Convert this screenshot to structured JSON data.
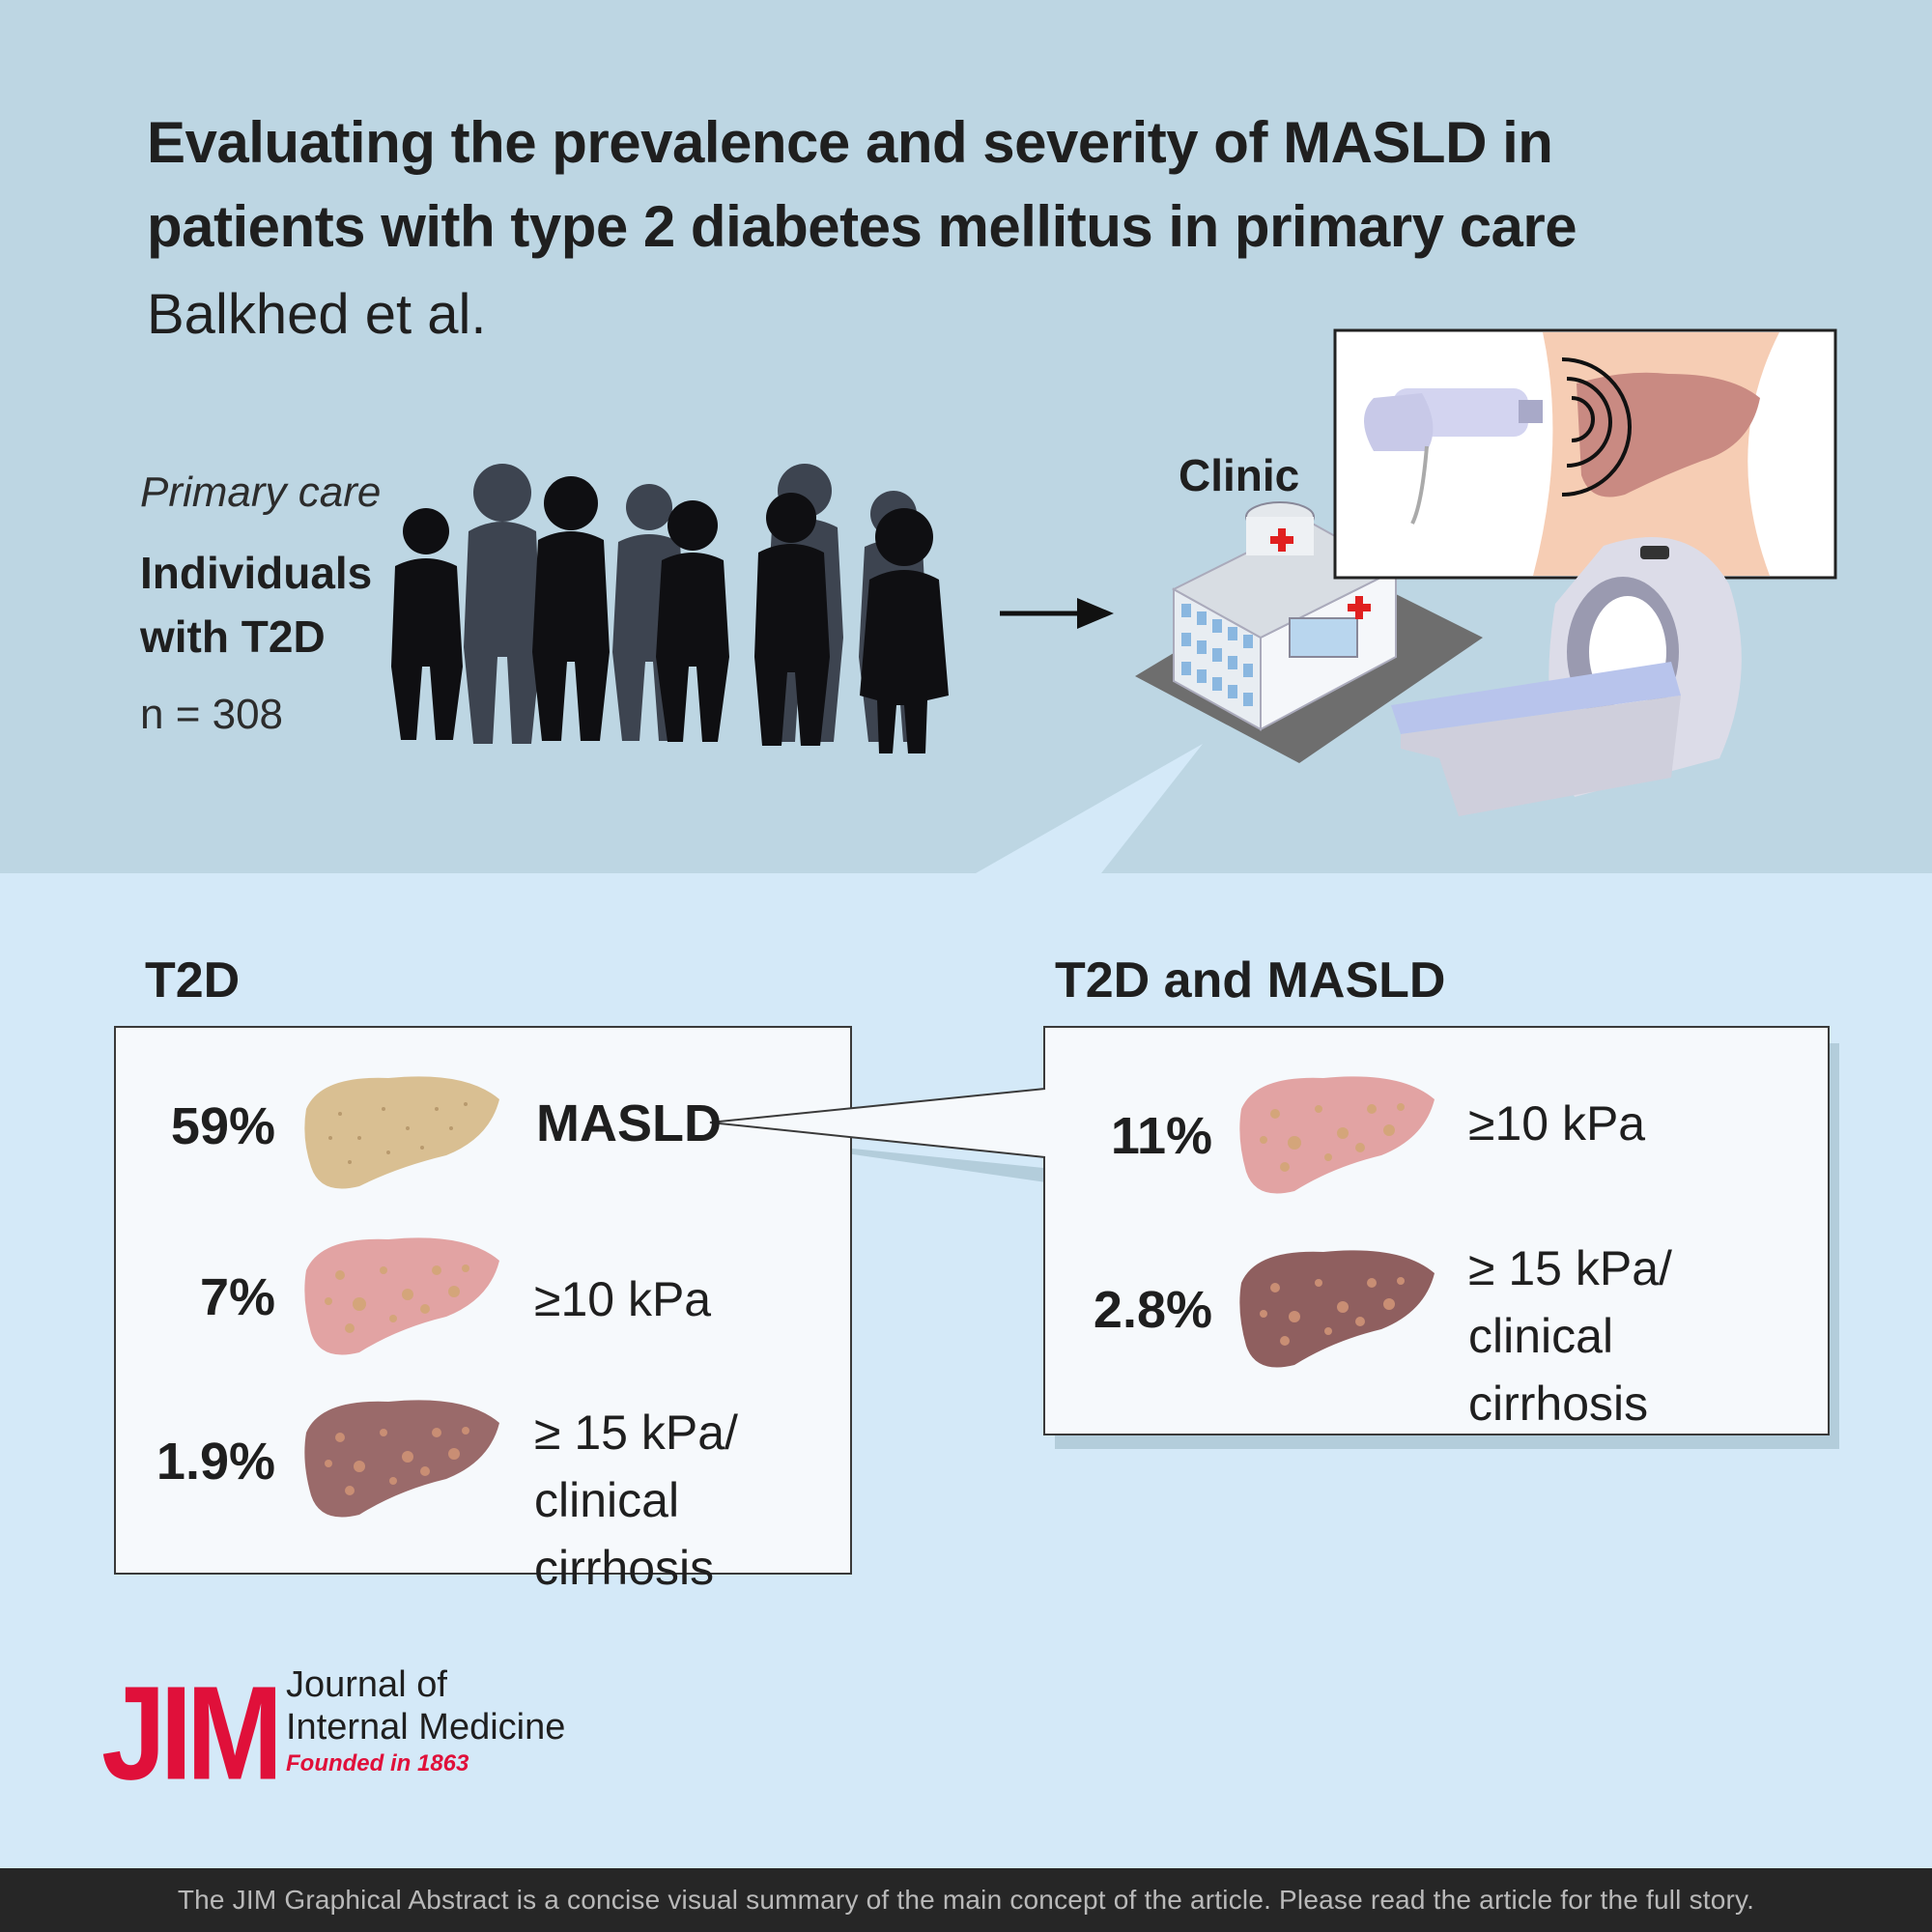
{
  "header": {
    "title": "Evaluating the prevalence and severity of MASLD in patients with type 2 diabetes mellitus in primary care",
    "authors": "Balkhed et al."
  },
  "cohort": {
    "setting": "Primary care",
    "group": "Individuals with T2D",
    "n": "n = 308"
  },
  "clinic": {
    "label": "Clinic"
  },
  "t2d": {
    "heading": "T2D",
    "rows": [
      {
        "pct": "59%",
        "label": "MASLD",
        "liver": "liver-fatty-icon"
      },
      {
        "pct": "7%",
        "label": "≥10 kPa",
        "liver": "liver-fibrosis-icon"
      },
      {
        "pct": "1.9%",
        "label": "≥ 15 kPa/ clinical cirrhosis",
        "liver": "liver-cirrhosis-icon"
      }
    ]
  },
  "t2d_masld": {
    "heading": "T2D and MASLD",
    "rows": [
      {
        "pct": "11%",
        "label": "≥10 kPa",
        "liver": "liver-fibrosis-icon"
      },
      {
        "pct": "2.8%",
        "label": "≥ 15 kPa/ clinical cirrhosis",
        "liver": "liver-cirrhosis-icon"
      }
    ]
  },
  "logo": {
    "mark": "JIM",
    "name_line1": "Journal of",
    "name_line2": "Internal Medicine",
    "founded": "Founded in 1863"
  },
  "footer": {
    "text": "The JIM Graphical Abstract is a concise visual summary of the main concept of the article. Please read the article for the full story."
  },
  "colors": {
    "top_bg": "#bdd6e3",
    "bottom_bg": "#d4e9f8",
    "accent_red": "#e0103a",
    "liver_fatty": "#d9bf92",
    "liver_fibrosis": "#e2a3a3",
    "liver_cirrhosis": "#9a6a6a"
  }
}
